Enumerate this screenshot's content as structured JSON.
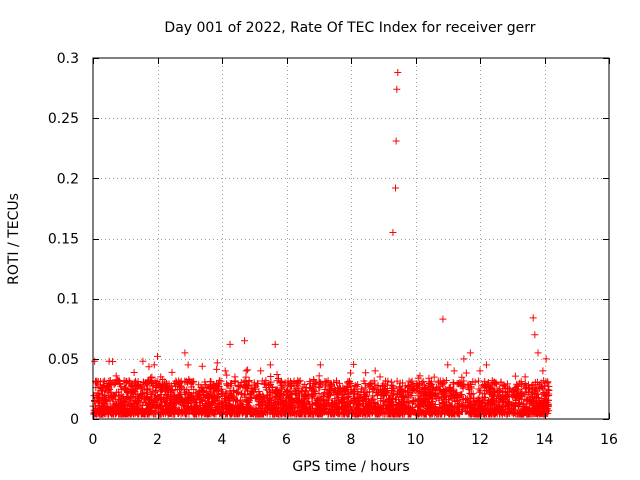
{
  "chart_data": {
    "type": "scatter",
    "title": "Day 001 of 2022, Rate Of TEC Index for receiver gerr",
    "xlabel": "GPS time / hours",
    "ylabel": "ROTI / TECUs",
    "xlim": [
      0,
      16
    ],
    "ylim": [
      0,
      0.3
    ],
    "xticks": [
      0,
      2,
      4,
      6,
      8,
      10,
      12,
      14,
      16
    ],
    "yticks": [
      0,
      0.05,
      0.1,
      0.15,
      0.2,
      0.25,
      0.3
    ],
    "xtick_labels": [
      "0",
      "2",
      "4",
      "6",
      "8",
      "10",
      "12",
      "14",
      "16"
    ],
    "ytick_labels": [
      "0",
      "0.05",
      "0.1",
      "0.15",
      "0.2",
      "0.25",
      "0.3"
    ],
    "grid": true,
    "marker": "+",
    "color": "#ff0000",
    "series": [
      {
        "name": "ROTI",
        "x": [
          0.05,
          0.1,
          0.3,
          0.5,
          0.7,
          1.0,
          1.3,
          1.5,
          1.7,
          1.9,
          2.0,
          2.1,
          2.3,
          2.5,
          2.7,
          2.85,
          2.95,
          3.1,
          3.3,
          3.6,
          3.9,
          4.1,
          4.25,
          4.4,
          4.7,
          4.75,
          5.0,
          5.2,
          5.5,
          5.65,
          5.8,
          6.0,
          6.3,
          6.6,
          6.9,
          7.05,
          7.3,
          7.6,
          7.9,
          8.2,
          8.5,
          8.75,
          8.9,
          9.1,
          9.3,
          9.38,
          9.4,
          9.42,
          9.45,
          9.6,
          9.9,
          10.2,
          10.5,
          10.7,
          10.85,
          11.0,
          11.2,
          11.5,
          11.7,
          12.0,
          12.2,
          12.5,
          12.8,
          13.1,
          13.4,
          13.65,
          13.7,
          13.8,
          13.95,
          14.05,
          14.1
        ],
        "y": [
          0.048,
          0.03,
          0.02,
          0.048,
          0.03,
          0.012,
          0.015,
          0.02,
          0.025,
          0.045,
          0.052,
          0.035,
          0.025,
          0.02,
          0.03,
          0.055,
          0.045,
          0.03,
          0.02,
          0.018,
          0.025,
          0.04,
          0.062,
          0.035,
          0.065,
          0.04,
          0.03,
          0.04,
          0.045,
          0.062,
          0.03,
          0.02,
          0.025,
          0.02,
          0.03,
          0.045,
          0.02,
          0.025,
          0.03,
          0.02,
          0.022,
          0.04,
          0.035,
          0.02,
          0.155,
          0.192,
          0.231,
          0.274,
          0.288,
          0.03,
          0.025,
          0.03,
          0.02,
          0.025,
          0.083,
          0.045,
          0.04,
          0.05,
          0.055,
          0.04,
          0.045,
          0.03,
          0.02,
          0.025,
          0.035,
          0.084,
          0.07,
          0.055,
          0.04,
          0.05,
          0.03
        ]
      }
    ]
  }
}
